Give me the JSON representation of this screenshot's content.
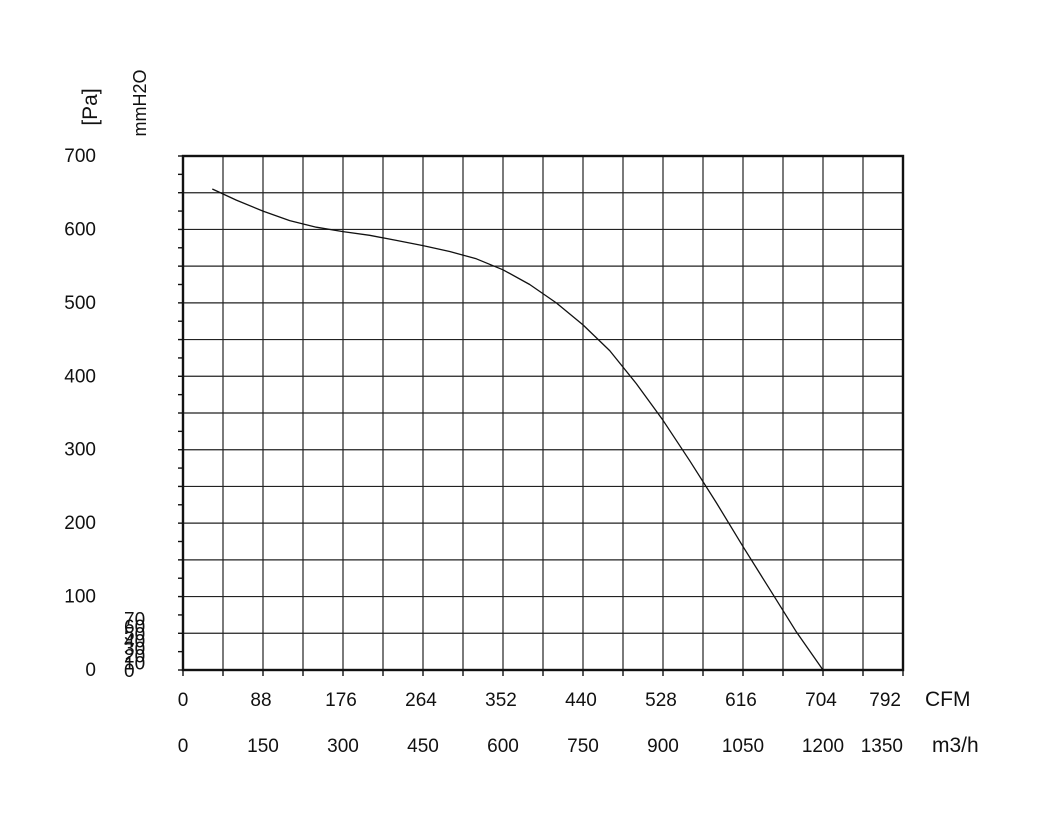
{
  "chart_data": {
    "type": "line",
    "x_cfm_ticks": [
      0,
      88,
      176,
      264,
      352,
      440,
      528,
      616,
      704,
      792
    ],
    "x_m3h_ticks": [
      0,
      150,
      300,
      450,
      600,
      750,
      900,
      1050,
      1200,
      1350
    ],
    "y_pa_ticks": [
      0,
      100,
      200,
      300,
      400,
      500,
      600,
      700
    ],
    "y_mmh2o_ticks": [
      0,
      10,
      20,
      30,
      40,
      50,
      60,
      70
    ],
    "x_unit_cfm": "CFM",
    "x_unit_m3h": "m3/h",
    "y_unit_pa": "[Pa]",
    "y_unit_mmh2o": "mmH2O",
    "xlim_m3h": [
      0,
      1350
    ],
    "ylim_pa": [
      0,
      700
    ],
    "grid": true,
    "series": [
      {
        "x": [
          55,
          100,
          150,
          200,
          250,
          300,
          350,
          400,
          450,
          500,
          550,
          600,
          650,
          700,
          750,
          800,
          850,
          900,
          950,
          1000,
          1050,
          1100,
          1150,
          1200,
          1250,
          1265
        ],
        "y": [
          655,
          640,
          625,
          612,
          603,
          597,
          592,
          585,
          578,
          570,
          560,
          545,
          525,
          500,
          470,
          435,
          390,
          340,
          285,
          228,
          168,
          110,
          52,
          0,
          0,
          0
        ]
      }
    ]
  }
}
